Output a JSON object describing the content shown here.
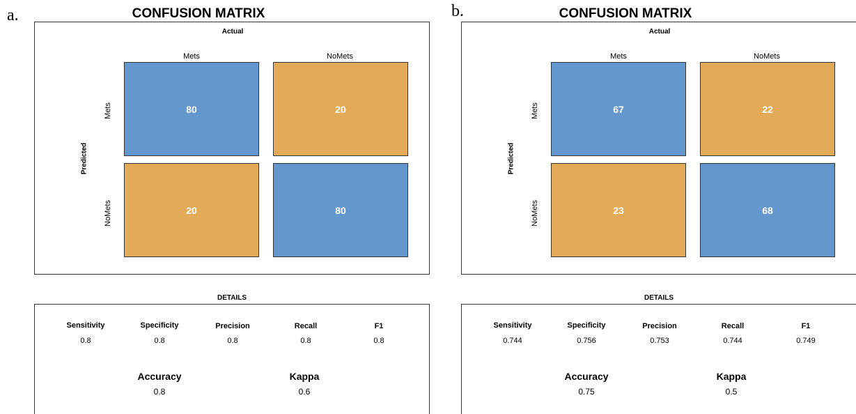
{
  "colors": {
    "correct": "#6497cd",
    "incorrect": "#e3ab57",
    "border": "#333333"
  },
  "chart_data": [
    {
      "type": "heatmap",
      "panel_label": "a.",
      "title": "CONFUSION MATRIX",
      "xlabel": "Actual",
      "ylabel": "Predicted",
      "x_categories": [
        "Mets",
        "NoMets"
      ],
      "y_categories": [
        "Mets",
        "NoMets"
      ],
      "matrix": [
        [
          80,
          20
        ],
        [
          20,
          80
        ]
      ],
      "details": {
        "title": "DETAILS",
        "metrics": [
          {
            "name": "Sensitivity",
            "value": "0.8"
          },
          {
            "name": "Specificity",
            "value": "0.8"
          },
          {
            "name": "Precision",
            "value": "0.8"
          },
          {
            "name": "Recall",
            "value": "0.8"
          },
          {
            "name": "F1",
            "value": "0.8"
          }
        ],
        "summary": [
          {
            "name": "Accuracy",
            "value": "0.8"
          },
          {
            "name": "Kappa",
            "value": "0.6"
          }
        ]
      }
    },
    {
      "type": "heatmap",
      "panel_label": "b.",
      "title": "CONFUSION MATRIX",
      "xlabel": "Actual",
      "ylabel": "Predicted",
      "x_categories": [
        "Mets",
        "NoMets"
      ],
      "y_categories": [
        "Mets",
        "NoMets"
      ],
      "matrix": [
        [
          67,
          22
        ],
        [
          23,
          68
        ]
      ],
      "details": {
        "title": "DETAILS",
        "metrics": [
          {
            "name": "Sensitivity",
            "value": "0.744"
          },
          {
            "name": "Specificity",
            "value": "0.756"
          },
          {
            "name": "Precision",
            "value": "0.753"
          },
          {
            "name": "Recall",
            "value": "0.744"
          },
          {
            "name": "F1",
            "value": "0.749"
          }
        ],
        "summary": [
          {
            "name": "Accuracy",
            "value": "0.75"
          },
          {
            "name": "Kappa",
            "value": "0.5"
          }
        ]
      }
    }
  ]
}
